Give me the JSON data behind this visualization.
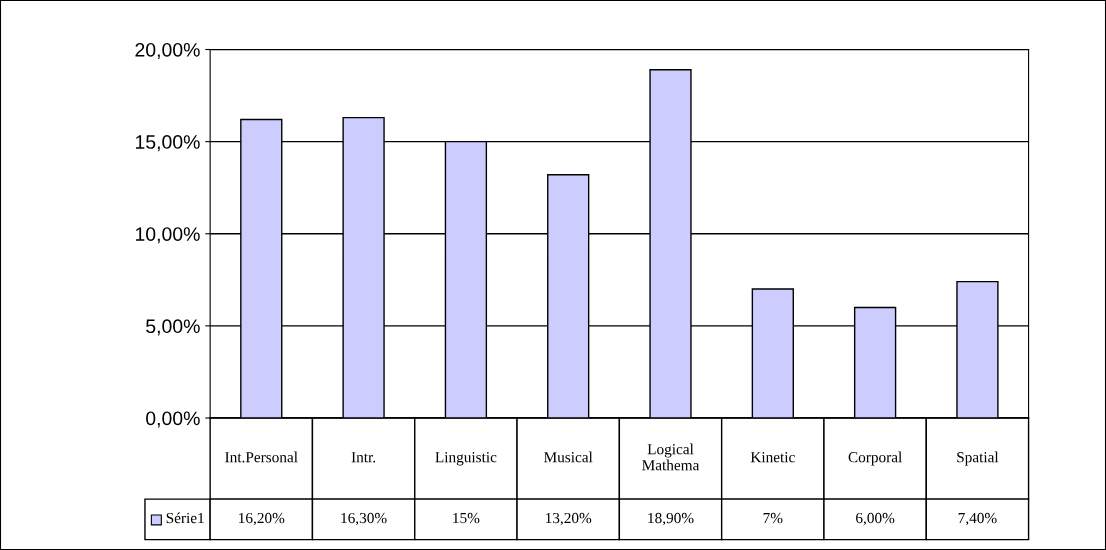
{
  "chart_data": {
    "type": "bar",
    "categories": [
      "Int.Personal",
      "Intr.",
      "Linguistic",
      "Musical",
      "Logical Mathema",
      "Kinetic",
      "Corporal",
      "Spatial"
    ],
    "series": [
      {
        "name": "Série1",
        "color": "#ccccff",
        "values": [
          16.2,
          16.3,
          15,
          13.2,
          18.9,
          7,
          6,
          7.4
        ],
        "value_labels": [
          "16,20%",
          "16,30%",
          "15%",
          "13,20%",
          "18,90%",
          "7%",
          "6,00%",
          "7,40%"
        ]
      }
    ],
    "ylim": [
      0,
      20
    ],
    "yticks": [
      {
        "value": 0,
        "label": "0,00%"
      },
      {
        "value": 5,
        "label": "5,00%"
      },
      {
        "value": 10,
        "label": "10,00%"
      },
      {
        "value": 15,
        "label": "15,00%"
      },
      {
        "value": 20,
        "label": "20,00%"
      }
    ],
    "grid": "y",
    "legend": "bottom"
  }
}
